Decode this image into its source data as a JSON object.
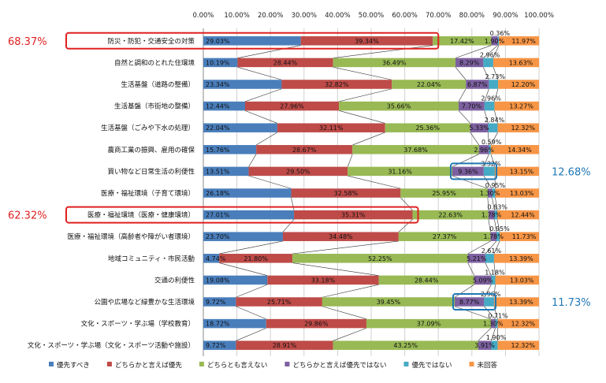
{
  "chart_data": {
    "type": "bar",
    "orientation": "horizontal",
    "stacked": true,
    "xlim": [
      0,
      100
    ],
    "grid": true,
    "legend_position": "bottom",
    "tick_labels": [
      "0.00%",
      "10.00%",
      "20.00%",
      "30.00%",
      "40.00%",
      "50.00%",
      "60.00%",
      "70.00%",
      "80.00%",
      "90.00%",
      "100.00%"
    ],
    "categories": [
      "防災・防犯・交通安全の対策",
      "自然と調和のとれた住環境",
      "生活基盤（道路の整備）",
      "生活基盤（市街地の整備）",
      "生活基盤（ごみや下水の処理）",
      "農商工業の振興、雇用の確保",
      "買い物など日常生活の利便性",
      "医療・福祉環境（子育て環境）",
      "医療・福祉環境（医療・健康環境）",
      "医療・福祉環境（高齢者や障がい者環境）",
      "地域コミュニティ・市民活動",
      "交通の利便性",
      "公園や広場など緑豊かな生活環境",
      "文化・スポーツ・学ぶ場（学校教育）",
      "文化・スポーツ・学ぶ場（文化・スポーツ活動や施設）"
    ],
    "series": [
      {
        "name": "優先すべき",
        "color": "#4a7ebb",
        "values": [
          29.03,
          10.19,
          23.34,
          12.44,
          22.04,
          15.76,
          13.51,
          26.18,
          27.01,
          23.7,
          4.74,
          19.08,
          9.72,
          18.72,
          9.72
        ]
      },
      {
        "name": "どちらかと言えば優先",
        "color": "#be4b48",
        "values": [
          39.34,
          28.44,
          32.82,
          27.96,
          32.11,
          28.67,
          29.5,
          32.58,
          35.31,
          34.48,
          21.8,
          33.18,
          25.71,
          29.86,
          28.91
        ]
      },
      {
        "name": "どちらとも言えない",
        "color": "#98b954",
        "values": [
          17.42,
          36.49,
          22.04,
          35.66,
          25.36,
          37.68,
          31.16,
          25.95,
          22.63,
          27.37,
          52.25,
          28.44,
          39.45,
          37.09,
          43.25
        ]
      },
      {
        "name": "どちらかと言えば優先ではない",
        "color": "#7d60a0",
        "values": [
          1.9,
          8.29,
          6.87,
          7.7,
          5.33,
          2.96,
          9.36,
          1.3,
          1.78,
          1.78,
          5.21,
          5.09,
          8.77,
          1.3,
          3.91
        ]
      },
      {
        "name": "優先ではない",
        "color": "#46aac5",
        "values": [
          0.36,
          2.96,
          2.73,
          2.96,
          2.84,
          0.59,
          3.32,
          0.95,
          0.83,
          0.95,
          2.61,
          1.18,
          2.96,
          0.71,
          1.9
        ]
      },
      {
        "name": "未回答",
        "color": "#f79646",
        "values": [
          11.97,
          13.63,
          12.2,
          13.27,
          12.32,
          14.34,
          13.15,
          13.03,
          12.44,
          11.73,
          13.39,
          13.03,
          13.39,
          12.32,
          12.32
        ]
      }
    ],
    "segment_labels": [
      [
        "29.03%",
        "39.34%",
        "17.42%",
        "1.90%",
        "0.36%",
        "11.97%"
      ],
      [
        "10.19%",
        "28.44%",
        "36.49%",
        "8.29%",
        "2.96%",
        "13.63%"
      ],
      [
        "23.34%",
        "32.82%",
        "22.04%",
        "6.87%",
        "2.73%",
        "12.20%"
      ],
      [
        "12.44%",
        "27.96%",
        "35.66%",
        "7.70%",
        "2.96%",
        "13.27%"
      ],
      [
        "22.04%",
        "32.11%",
        "25.36%",
        "5.33%",
        "2.84%",
        "12.32%"
      ],
      [
        "15.76%",
        "28.67%",
        "37.68%",
        "2.96%",
        "0.59%",
        "14.34%"
      ],
      [
        "13.51%",
        "29.50%",
        "31.16%",
        "9.36%",
        "3.32%",
        "13.15%"
      ],
      [
        "26.18%",
        "32.58%",
        "25.95%",
        "1.30%",
        "0.95%",
        "13.03%"
      ],
      [
        "27.01%",
        "35.31%",
        "22.63%",
        "1.78%",
        "0.83%",
        "12.44%"
      ],
      [
        "23.70%",
        "34.48%",
        "27.37%",
        "1.78%",
        "0.95%",
        "11.73%"
      ],
      [
        "4.74%",
        "21.80%",
        "52.25%",
        "5.21%",
        "2.61%",
        "13.39%"
      ],
      [
        "19.08%",
        "33.18%",
        "28.44%",
        "5.09%",
        "1.18%",
        "13.03%"
      ],
      [
        "9.72%",
        "25.71%",
        "39.45%",
        "8.77%",
        "2.96%",
        "13.39%"
      ],
      [
        "18.72%",
        "29.86%",
        "37.09%",
        "1.30%",
        "0.71%",
        "12.32%"
      ],
      [
        "9.72%",
        "28.91%",
        "43.25%",
        "3.91%",
        "1.90%",
        "12.32%"
      ]
    ],
    "annotations": [
      {
        "text": "68.37%",
        "color": "#e02020",
        "category_index": 0,
        "highlight": "first_two_series",
        "side": "left"
      },
      {
        "text": "62.32%",
        "color": "#e02020",
        "category_index": 8,
        "highlight": "first_two_series",
        "side": "left"
      },
      {
        "text": "12.68%",
        "color": "#1f77b4",
        "category_index": 6,
        "highlight": "series_4_and_5",
        "side": "right"
      },
      {
        "text": "11.73%",
        "color": "#1f77b4",
        "category_index": 12,
        "highlight": "series_4_and_5",
        "side": "right"
      }
    ]
  }
}
